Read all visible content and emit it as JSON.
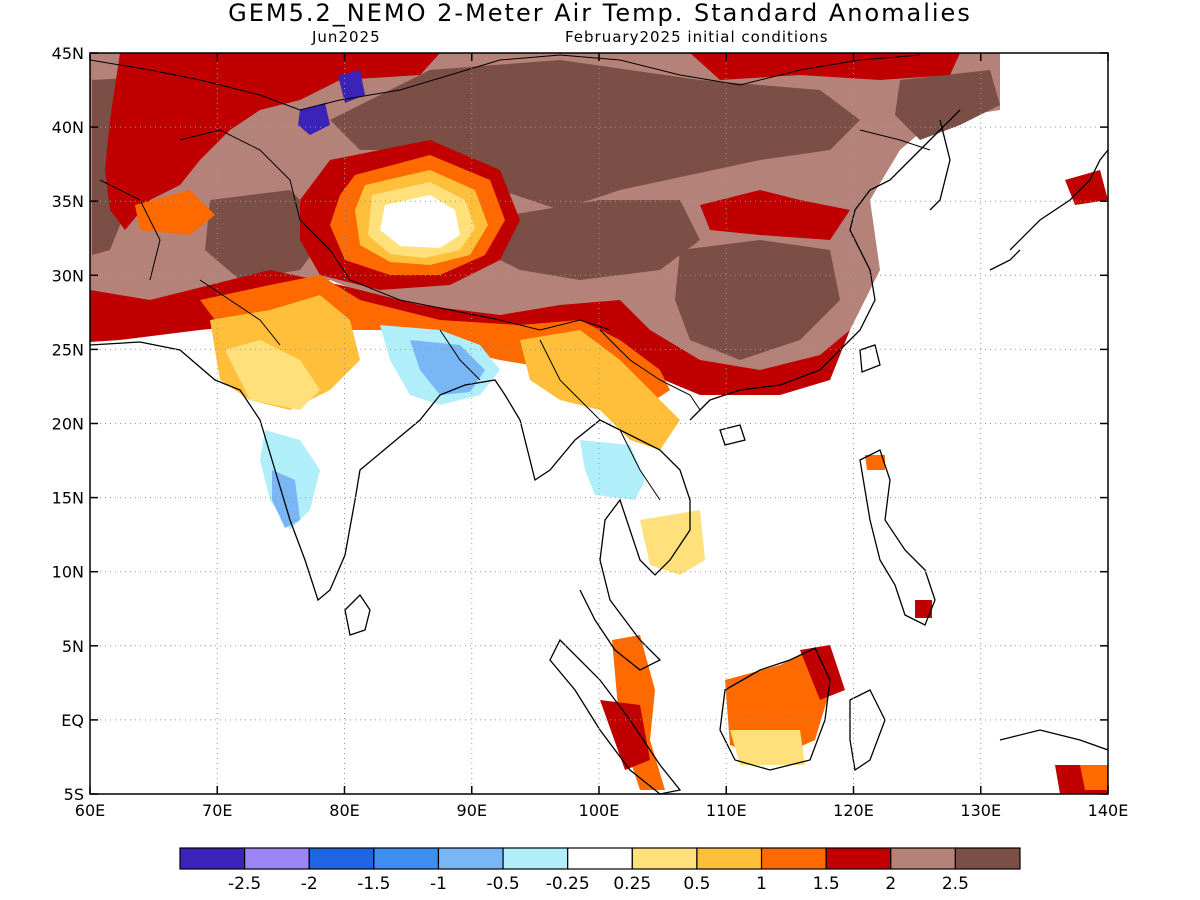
{
  "title": "GEM5.2_NEMO 2-Meter Air Temp. Standard Anomalies",
  "subtitle_left": "Jun2025",
  "subtitle_right": "February2025 initial conditions",
  "axes": {
    "x_ticks": [
      "60E",
      "70E",
      "80E",
      "90E",
      "100E",
      "110E",
      "120E",
      "130E",
      "140E"
    ],
    "y_ticks": [
      "45N",
      "40N",
      "35N",
      "30N",
      "25N",
      "20N",
      "15N",
      "10N",
      "5N",
      "EQ",
      "5S"
    ],
    "lon_range": [
      60,
      140
    ],
    "lat_range": [
      -5,
      45
    ]
  },
  "colorbar": {
    "colors": [
      "#3b22b8",
      "#9b85f5",
      "#1f64e0",
      "#3d8ef0",
      "#78b6f5",
      "#b0eefa",
      "#ffffff",
      "#ffe07a",
      "#ffbf3a",
      "#ff6a00",
      "#c00000",
      "#b48278",
      "#7b4f45"
    ],
    "labels": [
      "-2.5",
      "-2",
      "-1.5",
      "-1",
      "-0.5",
      "-0.25",
      "0.25",
      "0.5",
      "1",
      "1.5",
      "2",
      "2.5"
    ]
  },
  "map": {
    "colors": {
      "dark_brown": "#7b4f45",
      "light_brown": "#b48278",
      "dark_red": "#c00000",
      "red_orange": "#ff6a00",
      "orange": "#ffbf3a",
      "yellow": "#ffe07a",
      "light_blue": "#b0eefa",
      "blue": "#78b6f5",
      "mid_blue": "#3d8ef0",
      "deep_blue": "#3b22b8"
    }
  }
}
